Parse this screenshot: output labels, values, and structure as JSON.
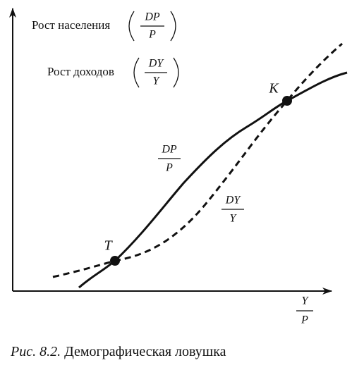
{
  "y_axis_labels": [
    {
      "text": "Рост населения",
      "numerator": "DP",
      "denominator": "P"
    },
    {
      "text": "Рост доходов",
      "numerator": "DY",
      "denominator": "Y"
    }
  ],
  "points": [
    {
      "label": "K"
    },
    {
      "label": "T"
    }
  ],
  "curves": [
    {
      "numerator": "DP",
      "denominator": "P"
    },
    {
      "numerator": "DY",
      "denominator": "Y"
    }
  ],
  "x_axis_label": {
    "numerator": "Y",
    "denominator": "P"
  },
  "caption": {
    "label": "Рис. 8.2.",
    "text": "Демографическая ловушка"
  }
}
